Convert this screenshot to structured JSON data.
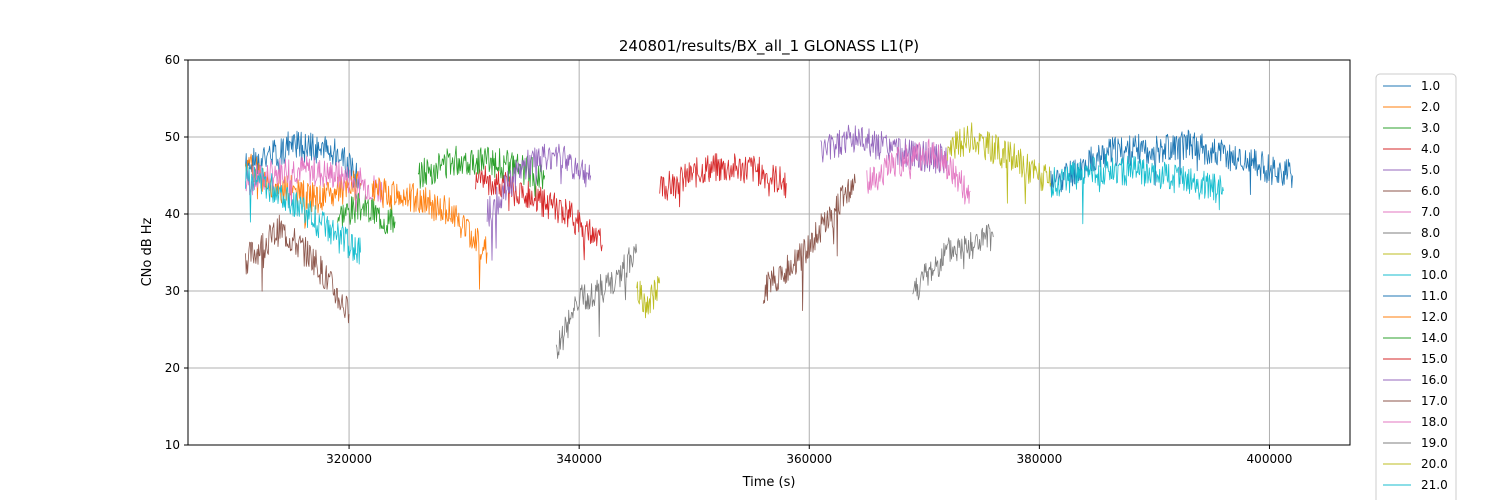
{
  "chart_data": {
    "type": "line",
    "title": "240801/results/BX_all_1 GLONASS L1(P)",
    "xlabel": "Time (s)",
    "ylabel": "CNo dB Hz",
    "xlim": [
      306000,
      407000
    ],
    "ylim": [
      10,
      60
    ],
    "x_ticks": [
      320000,
      340000,
      360000,
      380000,
      400000
    ],
    "y_ticks": [
      10,
      20,
      30,
      40,
      50,
      60
    ],
    "grid": true,
    "legend_position": "right, outside plot, clipped at bottom",
    "series": [
      {
        "name": "1.0",
        "color": "#1f77b4",
        "pts": [
          [
            311000,
            46
          ],
          [
            315000,
            49
          ],
          [
            319000,
            48
          ],
          [
            321000,
            44
          ]
        ]
      },
      {
        "name": "2.0",
        "color": "#ff7f0e",
        "pts": [
          [
            311000,
            47
          ],
          [
            313000,
            44
          ],
          [
            317000,
            42
          ],
          [
            321000,
            44
          ]
        ]
      },
      {
        "name": "3.0",
        "color": "#2ca02c",
        "pts": [
          [
            319000,
            40
          ],
          [
            321000,
            41
          ],
          [
            324000,
            39
          ]
        ]
      },
      {
        "name": "4.0",
        "color": "#d62728",
        "pts": [
          [
            331000,
            45
          ],
          [
            336000,
            42
          ],
          [
            339000,
            40
          ],
          [
            342000,
            36
          ]
        ]
      },
      {
        "name": "5.0",
        "color": "#9467bd",
        "pts": [
          [
            361000,
            48
          ],
          [
            364000,
            50
          ],
          [
            368000,
            48
          ],
          [
            372000,
            47
          ]
        ]
      },
      {
        "name": "6.0",
        "color": "#8c564b",
        "pts": [
          [
            311000,
            34
          ],
          [
            314000,
            38
          ],
          [
            317000,
            34
          ],
          [
            320000,
            27
          ]
        ]
      },
      {
        "name": "7.0",
        "color": "#e377c2",
        "pts": [
          [
            311000,
            44
          ],
          [
            315000,
            46
          ],
          [
            319000,
            45
          ],
          [
            323000,
            43
          ]
        ]
      },
      {
        "name": "8.0",
        "color": "#7f7f7f",
        "pts": [
          [
            369000,
            30
          ],
          [
            372000,
            35
          ],
          [
            376000,
            37
          ]
        ]
      },
      {
        "name": "9.0",
        "color": "#bcbd22",
        "pts": [
          [
            372000,
            48
          ],
          [
            374000,
            50
          ],
          [
            378000,
            47
          ],
          [
            381000,
            44
          ]
        ]
      },
      {
        "name": "10.0",
        "color": "#17becf",
        "pts": [
          [
            311000,
            45
          ],
          [
            314000,
            43
          ],
          [
            318000,
            38
          ],
          [
            321000,
            35
          ]
        ]
      },
      {
        "name": "11.0",
        "color": "#1f77b4",
        "pts": [
          [
            381000,
            44
          ],
          [
            386000,
            48
          ],
          [
            393000,
            49
          ],
          [
            402000,
            45
          ]
        ]
      },
      {
        "name": "12.0",
        "color": "#ff7f0e",
        "pts": [
          [
            322000,
            43
          ],
          [
            326000,
            42
          ],
          [
            329000,
            40
          ],
          [
            332000,
            35
          ]
        ]
      },
      {
        "name": "14.0",
        "color": "#2ca02c",
        "pts": [
          [
            326000,
            45
          ],
          [
            329000,
            47
          ],
          [
            332000,
            47
          ],
          [
            337000,
            45
          ]
        ]
      },
      {
        "name": "15.0",
        "color": "#d62728",
        "pts": [
          [
            347000,
            43
          ],
          [
            351000,
            46
          ],
          [
            355000,
            46
          ],
          [
            358000,
            44
          ]
        ]
      },
      {
        "name": "16.0",
        "color": "#9467bd",
        "pts": [
          [
            332000,
            40
          ],
          [
            335000,
            46
          ],
          [
            338000,
            48
          ],
          [
            341000,
            45
          ]
        ]
      },
      {
        "name": "17.0",
        "color": "#8c564b",
        "pts": [
          [
            356000,
            30
          ],
          [
            359000,
            34
          ],
          [
            362000,
            40
          ],
          [
            364000,
            44
          ]
        ]
      },
      {
        "name": "18.0",
        "color": "#e377c2",
        "pts": [
          [
            365000,
            44
          ],
          [
            368000,
            47
          ],
          [
            371000,
            48
          ],
          [
            374000,
            43
          ]
        ]
      },
      {
        "name": "19.0",
        "color": "#7f7f7f",
        "pts": [
          [
            338000,
            22
          ],
          [
            340000,
            29
          ],
          [
            343000,
            31
          ],
          [
            345000,
            35
          ]
        ]
      },
      {
        "name": "20.0",
        "color": "#bcbd22",
        "pts": [
          [
            345000,
            30
          ],
          [
            346000,
            28
          ],
          [
            347000,
            31
          ]
        ]
      },
      {
        "name": "21.0",
        "color": "#17becf",
        "pts": [
          [
            381000,
            44
          ],
          [
            386000,
            46
          ],
          [
            391000,
            45
          ],
          [
            396000,
            43
          ]
        ]
      }
    ]
  }
}
